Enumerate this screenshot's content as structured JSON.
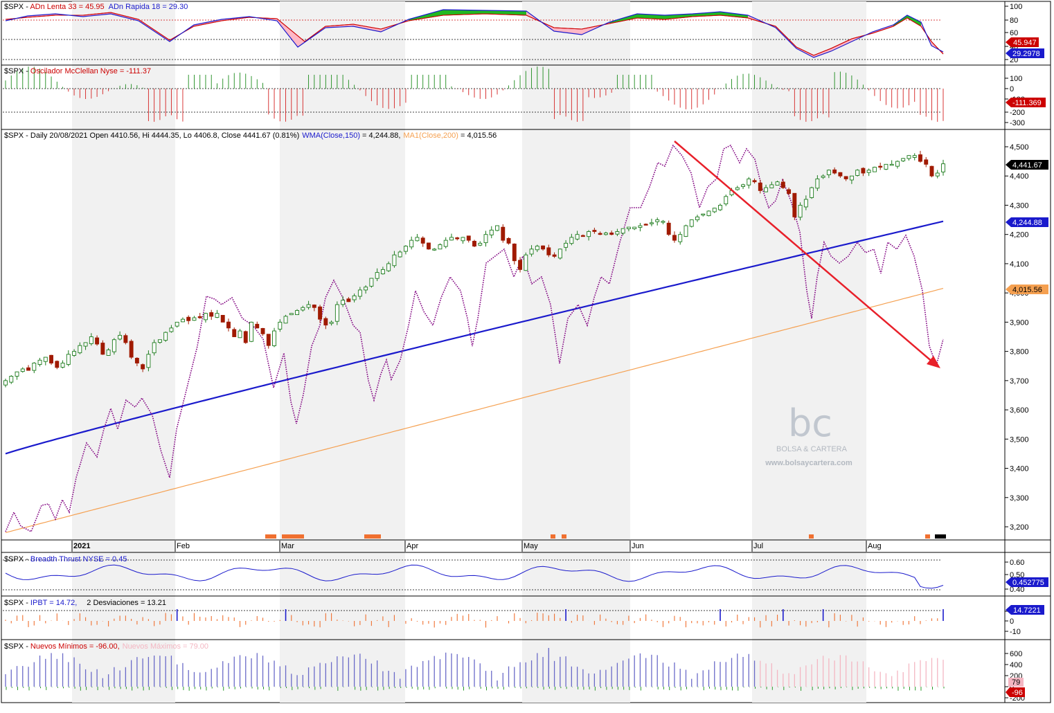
{
  "panels": {
    "adn": {
      "symbol": "$SPX",
      "sep": " - ",
      "line1_label": "ADn Lenta 33 = 45.95",
      "line2_label": "ADn Rapida 18 = 29.30",
      "line1_color": "#cc0000",
      "line2_color": "#1a1acc",
      "ticks": [
        "100",
        "80",
        "60",
        "40",
        "20"
      ],
      "badge1": "45.947",
      "badge2": "29.2978"
    },
    "mcclellan": {
      "symbol": "$SPX",
      "sep": " - ",
      "label": "Oscilador McClellan Nyse = -111.37",
      "label_color": "#cc0000",
      "ticks": [
        "100",
        "0",
        "-100",
        "-200",
        "-300"
      ],
      "badge": "-111.369"
    },
    "price": {
      "header_symbol": "$SPX - Daily 20/08/2021 Open 4410.56, Hi 4444.35, Lo 4406.8, Close 4441.67 (0.81%)",
      "wma_label": "WMA(Close,150)",
      "wma_value": " = 4,244.88,",
      "ma_label": "MA1(Close,200)",
      "ma_value": " = 4,015.56",
      "wma_color": "#1a1acc",
      "ma_color": "#f5a050",
      "ticks": [
        "4,500",
        "4,400",
        "4,300",
        "4,200",
        "4,100",
        "4,000",
        "3,900",
        "3,800",
        "3,700",
        "3,600",
        "3,500",
        "3,400",
        "3,300",
        "3,200"
      ],
      "badge_close": "4,441.67",
      "badge_wma": "4,244.88",
      "badge_ma": "4,015.56"
    },
    "dates": {
      "labels": [
        "2021",
        "Feb",
        "Mar",
        "Apr",
        "May",
        "Jun",
        "Jul",
        "Aug"
      ]
    },
    "breadth": {
      "symbol": "$SPX",
      "sep": " - ",
      "label": "Breadth Thrust NYSE = 0.45",
      "label_color": "#1a1acc",
      "ticks": [
        "0.60",
        "0.50",
        "0.40"
      ],
      "badge": "0.452775"
    },
    "ipbt": {
      "symbol": "$SPX",
      "sep": " - ",
      "label": "IPBT = 14.72,",
      "label2": "2 Desviaciones = 13.21",
      "label_color": "#1a1acc",
      "ticks": [
        "10",
        "0",
        "-10"
      ],
      "badge": "14.7221"
    },
    "highs_lows": {
      "symbol": "$SPX",
      "sep": " - ",
      "lows_label": "Nuevos Mínimos = -96.00,",
      "highs_label": "Nuevos Máximos = 79.00",
      "lows_color": "#cc0000",
      "highs_color": "#f4b6c2",
      "ticks": [
        "600",
        "400",
        "200",
        "0",
        "-200"
      ],
      "badge_high": "79",
      "badge_low": "-96"
    }
  },
  "watermark": {
    "logo": "bc",
    "name": "BOLSA & CARTERA",
    "url": "www.bolsaycartera.com"
  },
  "chart_data": {
    "type": "line",
    "instrument": "$SPX",
    "interval": "Daily",
    "period": [
      "2021-01",
      "2021-08-20"
    ],
    "last_bar": {
      "date": "20/08/2021",
      "open": 4410.56,
      "high": 4444.35,
      "low": 4406.8,
      "close": 4441.67,
      "change_pct": 0.81
    },
    "price_axis": {
      "ylim": [
        3170,
        4540
      ]
    },
    "months": [
      "2021",
      "Feb",
      "Mar",
      "Apr",
      "May",
      "Jun",
      "Jul",
      "Aug"
    ],
    "price_closes": [
      3700,
      3715,
      3730,
      3740,
      3735,
      3760,
      3770,
      3780,
      3760,
      3745,
      3760,
      3790,
      3800,
      3820,
      3830,
      3850,
      3825,
      3790,
      3805,
      3840,
      3855,
      3830,
      3780,
      3760,
      3740,
      3790,
      3830,
      3840,
      3865,
      3880,
      3900,
      3910,
      3905,
      3915,
      3915,
      3930,
      3920,
      3930,
      3900,
      3880,
      3850,
      3870,
      3830,
      3900,
      3880,
      3860,
      3820,
      3870,
      3900,
      3920,
      3930,
      3940,
      3950,
      3960,
      3950,
      3910,
      3890,
      3900,
      3960,
      3975,
      3970,
      3990,
      4010,
      4020,
      4050,
      4070,
      4080,
      4100,
      4130,
      4140,
      4160,
      4180,
      4190,
      4170,
      4150,
      4150,
      4165,
      4180,
      4190,
      4185,
      4190,
      4180,
      4160,
      4170,
      4200,
      4215,
      4230,
      4180,
      4170,
      4110,
      4080,
      4130,
      4150,
      4160,
      4150,
      4130,
      4125,
      4150,
      4170,
      4190,
      4200,
      4195,
      4210,
      4210,
      4200,
      4205,
      4200,
      4210,
      4220,
      4225,
      4225,
      4230,
      4235,
      4240,
      4250,
      4245,
      4200,
      4180,
      4200,
      4230,
      4250,
      4260,
      4270,
      4280,
      4290,
      4300,
      4330,
      4350,
      4360,
      4370,
      4390,
      4380,
      4350,
      4360,
      4370,
      4380,
      4360,
      4340,
      4260,
      4300,
      4320,
      4360,
      4390,
      4400,
      4420,
      4410,
      4400,
      4390,
      4400,
      4420,
      4410,
      4420,
      4430,
      4430,
      4440,
      4440,
      4450,
      4460,
      4470,
      4470,
      4450,
      4440,
      4400,
      4410,
      4441.67
    ],
    "series": [
      {
        "name": "WMA(Close,150)",
        "start": 3450,
        "end": 4244.88
      },
      {
        "name": "MA1(Close,200)",
        "start": 3180,
        "end": 4015.56
      }
    ],
    "indicators": {
      "ADn Lenta 33": 45.95,
      "ADn Rapida 18": 29.3,
      "Oscilador McClellan Nyse": -111.37,
      "Breadth Thrust NYSE": 0.45,
      "IPBT": 14.72,
      "2 Desviaciones": 13.21,
      "Nuevos Mínimos": -96.0,
      "Nuevos Máximos": 79.0
    },
    "annotations": {
      "trend_arrow": {
        "from": [
          "Jun",
          4520
        ],
        "to": [
          "Aug",
          3745
        ],
        "color": "#e8202a"
      }
    },
    "grid": false,
    "legend": "top-left"
  }
}
